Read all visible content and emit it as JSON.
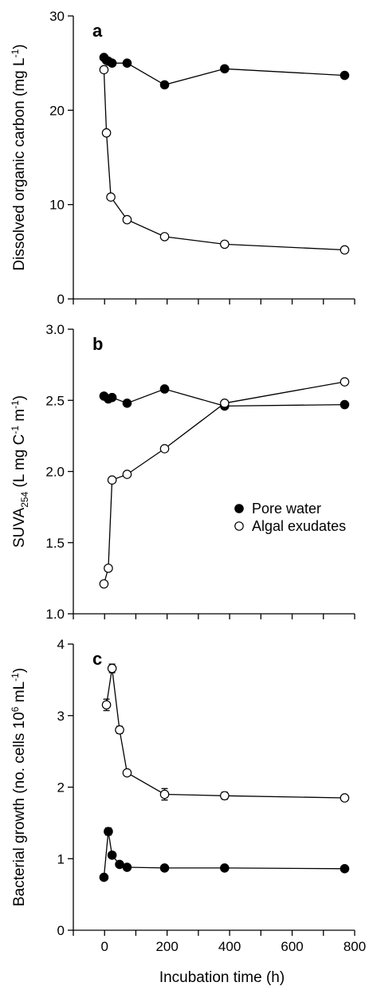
{
  "chart_data": [
    {
      "type": "line",
      "panel_label": "a",
      "ylabel": "Dissolved organic carbon (mg L",
      "ylabel_sup": "-1",
      "ylabel_end": ")",
      "xlabel": "",
      "xlim": [
        -100,
        800
      ],
      "ylim": [
        0,
        30
      ],
      "yticks": [
        "0",
        "10",
        "20",
        "30"
      ],
      "xticks_labeled": false,
      "series": [
        {
          "name": "Pore water",
          "marker": "filled",
          "points": [
            [
              -2,
              25.6
            ],
            [
              6,
              25.3
            ],
            [
              12,
              25.2
            ],
            [
              24,
              25.0
            ],
            [
              72,
              25.0
            ],
            [
              192,
              22.7
            ],
            [
              384,
              24.4
            ],
            [
              768,
              23.7
            ]
          ]
        },
        {
          "name": "Algal exudates",
          "marker": "open",
          "points": [
            [
              -2,
              24.3
            ],
            [
              6,
              17.6
            ],
            [
              20,
              10.8
            ],
            [
              72,
              8.4
            ],
            [
              192,
              6.6
            ],
            [
              384,
              5.8
            ],
            [
              768,
              5.2
            ]
          ]
        }
      ]
    },
    {
      "type": "line",
      "panel_label": "b",
      "ylabel": "SUVA",
      "ylabel_sub": "254",
      "ylabel_rest": " (L mg C",
      "ylabel_sup1": "-1",
      "ylabel_mid": " m",
      "ylabel_sup2": "-1",
      "ylabel_end": ")",
      "xlabel": "",
      "xlim": [
        -100,
        800
      ],
      "ylim": [
        1.0,
        3.0
      ],
      "yticks": [
        "1.0",
        "1.5",
        "2.0",
        "2.5",
        "3.0"
      ],
      "xticks_labeled": false,
      "legend": {
        "position": "bottom-right",
        "items": [
          "Pore water",
          "Algal exudates"
        ]
      },
      "series": [
        {
          "name": "Pore water",
          "marker": "filled",
          "points": [
            [
              -2,
              2.53
            ],
            [
              12,
              2.51
            ],
            [
              24,
              2.52
            ],
            [
              72,
              2.48
            ],
            [
              192,
              2.58
            ],
            [
              384,
              2.46
            ],
            [
              768,
              2.47
            ]
          ]
        },
        {
          "name": "Algal exudates",
          "marker": "open",
          "points": [
            [
              -2,
              1.21
            ],
            [
              12,
              1.32
            ],
            [
              24,
              1.94
            ],
            [
              72,
              1.98
            ],
            [
              192,
              2.16
            ],
            [
              384,
              2.48
            ],
            [
              768,
              2.63
            ]
          ]
        }
      ]
    },
    {
      "type": "line",
      "panel_label": "c",
      "ylabel": "Bacterial growth (no. cells 10",
      "ylabel_sup1": "6",
      "ylabel_mid": "  mL",
      "ylabel_sup2": "-1",
      "ylabel_end": ")",
      "xlabel": "Incubation time (h)",
      "xlim": [
        -100,
        800
      ],
      "ylim": [
        0,
        4
      ],
      "yticks": [
        "0",
        "1",
        "2",
        "3",
        "4"
      ],
      "xticks": [
        "0",
        "200",
        "400",
        "600",
        "800"
      ],
      "xticks_labeled": true,
      "series": [
        {
          "name": "Pore water",
          "marker": "filled",
          "points": [
            [
              -2,
              0.74,
              0.03
            ],
            [
              12,
              1.38,
              0.05
            ],
            [
              24,
              1.05,
              0.03
            ],
            [
              48,
              0.92,
              0.03
            ],
            [
              72,
              0.88,
              0.02
            ],
            [
              192,
              0.87,
              0.02
            ],
            [
              384,
              0.87,
              0.02
            ],
            [
              768,
              0.86,
              0.02
            ]
          ]
        },
        {
          "name": "Algal exudates",
          "marker": "open",
          "points": [
            [
              6,
              3.15,
              0.08
            ],
            [
              24,
              3.66,
              0.06
            ],
            [
              48,
              2.8,
              0.05
            ],
            [
              72,
              2.2,
              0.04
            ],
            [
              192,
              1.9,
              0.08
            ],
            [
              384,
              1.88,
              0.05
            ],
            [
              768,
              1.85,
              0.03
            ]
          ]
        }
      ]
    }
  ]
}
